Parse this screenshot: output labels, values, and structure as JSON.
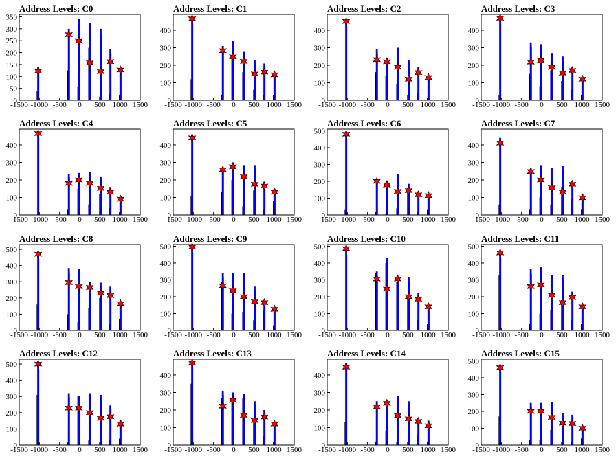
{
  "figure_title": "",
  "colors": {
    "hist": "#0000ff",
    "spike": "#000000",
    "star_fill": "#ff0000",
    "star_stroke": "#000000",
    "frame": "#000000"
  },
  "chart_data": [
    {
      "type": "bar",
      "title": "Address Levels: C0",
      "ylim": [
        0,
        360
      ],
      "yticks": [
        0,
        50,
        100,
        150,
        200,
        250,
        300,
        350
      ],
      "xticks": [
        -1500,
        -1000,
        -500,
        0,
        500,
        1000,
        1500
      ],
      "xlim": [
        -1500,
        1500
      ],
      "peaks": [
        {
          "x": -1030,
          "blue": 140,
          "black": 40,
          "star": 122
        },
        {
          "x": -270,
          "blue": 300,
          "black": 125,
          "star": 275
        },
        {
          "x": -20,
          "blue": 340,
          "black": 55,
          "star": 248
        },
        {
          "x": 250,
          "blue": 325,
          "black": 220,
          "star": 157
        },
        {
          "x": 520,
          "blue": 300,
          "black": 15,
          "star": 120
        },
        {
          "x": 760,
          "blue": 215,
          "black": 25,
          "star": 162
        },
        {
          "x": 1010,
          "blue": 140,
          "black": 20,
          "star": 127
        }
      ]
    },
    {
      "type": "bar",
      "title": "Address Levels: C1",
      "ylim": [
        0,
        490
      ],
      "yticks": [
        0,
        100,
        200,
        300,
        400
      ],
      "xticks": [
        -1500,
        -1000,
        -500,
        0,
        500,
        1000,
        1500
      ],
      "xlim": [
        -1500,
        1500
      ],
      "peaks": [
        {
          "x": -1030,
          "blue": 480,
          "black": 120,
          "star": 465
        },
        {
          "x": -270,
          "blue": 310,
          "black": 30,
          "star": 283
        },
        {
          "x": -20,
          "blue": 340,
          "black": 240,
          "star": 248
        },
        {
          "x": 250,
          "blue": 280,
          "black": 160,
          "star": 222
        },
        {
          "x": 520,
          "blue": 230,
          "black": 60,
          "star": 150
        },
        {
          "x": 760,
          "blue": 210,
          "black": 30,
          "star": 160
        },
        {
          "x": 1010,
          "blue": 155,
          "black": 30,
          "star": 145
        }
      ]
    },
    {
      "type": "bar",
      "title": "Address Levels: C2",
      "ylim": [
        0,
        490
      ],
      "yticks": [
        0,
        100,
        200,
        300,
        400
      ],
      "xticks": [
        -1500,
        -1000,
        -500,
        0,
        500,
        1000,
        1500
      ],
      "xlim": [
        -1500,
        1500
      ],
      "peaks": [
        {
          "x": -1030,
          "blue": 460,
          "black": 0,
          "star": 450
        },
        {
          "x": -270,
          "blue": 290,
          "black": 160,
          "star": 232
        },
        {
          "x": -20,
          "blue": 240,
          "black": 140,
          "star": 220
        },
        {
          "x": 250,
          "blue": 300,
          "black": 90,
          "star": 188
        },
        {
          "x": 520,
          "blue": 230,
          "black": 30,
          "star": 120
        },
        {
          "x": 760,
          "blue": 190,
          "black": 40,
          "star": 158
        },
        {
          "x": 1010,
          "blue": 140,
          "black": 15,
          "star": 130
        }
      ]
    },
    {
      "type": "bar",
      "title": "Address Levels: C3",
      "ylim": [
        0,
        490
      ],
      "yticks": [
        0,
        100,
        200,
        300,
        400
      ],
      "xticks": [
        -1500,
        -1000,
        -500,
        0,
        500,
        1000,
        1500
      ],
      "xlim": [
        -1500,
        1500
      ],
      "peaks": [
        {
          "x": -1030,
          "blue": 480,
          "black": 30,
          "star": 468
        },
        {
          "x": -270,
          "blue": 330,
          "black": 150,
          "star": 218
        },
        {
          "x": -20,
          "blue": 320,
          "black": 80,
          "star": 228
        },
        {
          "x": 250,
          "blue": 270,
          "black": 170,
          "star": 188
        },
        {
          "x": 520,
          "blue": 250,
          "black": 110,
          "star": 155
        },
        {
          "x": 760,
          "blue": 190,
          "black": 60,
          "star": 170
        },
        {
          "x": 1010,
          "blue": 130,
          "black": 30,
          "star": 120
        }
      ]
    },
    {
      "type": "bar",
      "title": "Address Levels: C4",
      "ylim": [
        0,
        490
      ],
      "yticks": [
        0,
        100,
        200,
        300,
        400
      ],
      "xticks": [
        -1500,
        -1000,
        -500,
        0,
        500,
        1000,
        1500
      ],
      "xlim": [
        -1500,
        1500
      ],
      "peaks": [
        {
          "x": -1030,
          "blue": 480,
          "black": 0,
          "star": 465
        },
        {
          "x": -270,
          "blue": 235,
          "black": 30,
          "star": 180
        },
        {
          "x": -20,
          "blue": 240,
          "black": 150,
          "star": 200
        },
        {
          "x": 250,
          "blue": 245,
          "black": 60,
          "star": 180
        },
        {
          "x": 520,
          "blue": 220,
          "black": 120,
          "star": 152
        },
        {
          "x": 760,
          "blue": 160,
          "black": 40,
          "star": 130
        },
        {
          "x": 1010,
          "blue": 110,
          "black": 15,
          "star": 90
        }
      ]
    },
    {
      "type": "bar",
      "title": "Address Levels: C5",
      "ylim": [
        0,
        490
      ],
      "yticks": [
        0,
        100,
        200,
        300,
        400
      ],
      "xticks": [
        -1500,
        -1000,
        -500,
        0,
        500,
        1000,
        1500
      ],
      "xlim": [
        -1500,
        1500
      ],
      "peaks": [
        {
          "x": -1030,
          "blue": 460,
          "black": 110,
          "star": 440
        },
        {
          "x": -270,
          "blue": 270,
          "black": 130,
          "star": 258
        },
        {
          "x": -20,
          "blue": 300,
          "black": 200,
          "star": 275
        },
        {
          "x": 250,
          "blue": 285,
          "black": 50,
          "star": 218
        },
        {
          "x": 520,
          "blue": 285,
          "black": 140,
          "star": 175
        },
        {
          "x": 760,
          "blue": 190,
          "black": 30,
          "star": 165
        },
        {
          "x": 1010,
          "blue": 150,
          "black": 80,
          "star": 130
        }
      ]
    },
    {
      "type": "bar",
      "title": "Address Levels: C6",
      "ylim": [
        0,
        510
      ],
      "yticks": [
        0,
        100,
        200,
        300,
        400,
        500
      ],
      "xticks": [
        -1500,
        -1000,
        -500,
        0,
        500,
        1000,
        1500
      ],
      "xlim": [
        -1500,
        1500
      ],
      "peaks": [
        {
          "x": -1030,
          "blue": 490,
          "black": 30,
          "star": 480
        },
        {
          "x": -270,
          "blue": 210,
          "black": 20,
          "star": 200
        },
        {
          "x": -20,
          "blue": 205,
          "black": 10,
          "star": 178
        },
        {
          "x": 250,
          "blue": 245,
          "black": 40,
          "star": 140
        },
        {
          "x": 520,
          "blue": 185,
          "black": 160,
          "star": 145
        },
        {
          "x": 760,
          "blue": 140,
          "black": 20,
          "star": 120
        },
        {
          "x": 1010,
          "blue": 115,
          "black": 30,
          "star": 115
        }
      ]
    },
    {
      "type": "bar",
      "title": "Address Levels: C7",
      "ylim": [
        0,
        490
      ],
      "yticks": [
        0,
        100,
        200,
        300,
        400
      ],
      "xticks": [
        -1500,
        -1000,
        -500,
        0,
        500,
        1000,
        1500
      ],
      "xlim": [
        -1500,
        1500
      ],
      "peaks": [
        {
          "x": -1030,
          "blue": 440,
          "black": 60,
          "star": 410
        },
        {
          "x": -270,
          "blue": 265,
          "black": 30,
          "star": 248
        },
        {
          "x": -20,
          "blue": 285,
          "black": 100,
          "star": 200
        },
        {
          "x": 250,
          "blue": 270,
          "black": 60,
          "star": 155
        },
        {
          "x": 520,
          "blue": 280,
          "black": 160,
          "star": 130
        },
        {
          "x": 760,
          "blue": 190,
          "black": 90,
          "star": 175
        },
        {
          "x": 1010,
          "blue": 120,
          "black": 30,
          "star": 98
        }
      ]
    },
    {
      "type": "bar",
      "title": "Address Levels: C8",
      "ylim": [
        0,
        530
      ],
      "yticks": [
        0,
        100,
        200,
        300,
        400,
        500
      ],
      "xticks": [
        -1500,
        -1000,
        -500,
        0,
        500,
        1000,
        1500
      ],
      "xlim": [
        -1500,
        1500
      ],
      "peaks": [
        {
          "x": -1030,
          "blue": 480,
          "black": 160,
          "star": 470
        },
        {
          "x": -270,
          "blue": 385,
          "black": 100,
          "star": 295
        },
        {
          "x": -20,
          "blue": 380,
          "black": 50,
          "star": 270
        },
        {
          "x": 250,
          "blue": 300,
          "black": 140,
          "star": 265
        },
        {
          "x": 520,
          "blue": 295,
          "black": 200,
          "star": 230
        },
        {
          "x": 760,
          "blue": 270,
          "black": 40,
          "star": 215
        },
        {
          "x": 1010,
          "blue": 180,
          "black": 70,
          "star": 165
        }
      ]
    },
    {
      "type": "bar",
      "title": "Address Levels: C9",
      "ylim": [
        0,
        510
      ],
      "yticks": [
        0,
        100,
        200,
        300,
        400,
        500
      ],
      "xticks": [
        -1500,
        -1000,
        -500,
        0,
        500,
        1000,
        1500
      ],
      "xlim": [
        -1500,
        1500
      ],
      "peaks": [
        {
          "x": -1030,
          "blue": 505,
          "black": 0,
          "star": 495
        },
        {
          "x": -270,
          "blue": 340,
          "black": 290,
          "star": 265
        },
        {
          "x": -20,
          "blue": 340,
          "black": 100,
          "star": 235
        },
        {
          "x": 250,
          "blue": 340,
          "black": 110,
          "star": 200
        },
        {
          "x": 520,
          "blue": 260,
          "black": 60,
          "star": 170
        },
        {
          "x": 760,
          "blue": 175,
          "black": 120,
          "star": 165
        },
        {
          "x": 1010,
          "blue": 135,
          "black": 30,
          "star": 125
        }
      ]
    },
    {
      "type": "bar",
      "title": "Address Levels: C10",
      "ylim": [
        0,
        510
      ],
      "yticks": [
        0,
        100,
        200,
        300,
        400,
        500
      ],
      "xticks": [
        -1500,
        -1000,
        -500,
        0,
        500,
        1000,
        1500
      ],
      "xlim": [
        -1500,
        1500
      ],
      "peaks": [
        {
          "x": -1030,
          "blue": 490,
          "black": 0,
          "star": 485
        },
        {
          "x": -270,
          "blue": 350,
          "black": 340,
          "star": 305
        },
        {
          "x": -20,
          "blue": 430,
          "black": 400,
          "star": 245
        },
        {
          "x": 250,
          "blue": 310,
          "black": 290,
          "star": 305
        },
        {
          "x": 520,
          "blue": 315,
          "black": 200,
          "star": 200
        },
        {
          "x": 760,
          "blue": 220,
          "black": 60,
          "star": 185
        },
        {
          "x": 1010,
          "blue": 160,
          "black": 40,
          "star": 140
        }
      ]
    },
    {
      "type": "bar",
      "title": "Address Levels: C11",
      "ylim": [
        0,
        510
      ],
      "yticks": [
        0,
        100,
        200,
        300,
        400,
        500
      ],
      "xticks": [
        -1500,
        -1000,
        -500,
        0,
        500,
        1000,
        1500
      ],
      "xlim": [
        -1500,
        1500
      ],
      "peaks": [
        {
          "x": -1030,
          "blue": 470,
          "black": 330,
          "star": 460
        },
        {
          "x": -270,
          "blue": 365,
          "black": 40,
          "star": 260
        },
        {
          "x": -20,
          "blue": 375,
          "black": 100,
          "star": 270
        },
        {
          "x": 250,
          "blue": 330,
          "black": 120,
          "star": 208
        },
        {
          "x": 520,
          "blue": 330,
          "black": 180,
          "star": 165
        },
        {
          "x": 760,
          "blue": 230,
          "black": 60,
          "star": 195
        },
        {
          "x": 1010,
          "blue": 160,
          "black": 40,
          "star": 140
        }
      ]
    },
    {
      "type": "bar",
      "title": "Address Levels: C12",
      "ylim": [
        0,
        530
      ],
      "yticks": [
        0,
        100,
        200,
        300,
        400,
        500
      ],
      "xticks": [
        -1500,
        -1000,
        -500,
        0,
        500,
        1000,
        1500
      ],
      "xlim": [
        -1500,
        1500
      ],
      "peaks": [
        {
          "x": -1030,
          "blue": 505,
          "black": 310,
          "star": 500
        },
        {
          "x": -270,
          "blue": 320,
          "black": 20,
          "star": 228
        },
        {
          "x": -20,
          "blue": 305,
          "black": 300,
          "star": 228
        },
        {
          "x": 250,
          "blue": 320,
          "black": 30,
          "star": 200
        },
        {
          "x": 520,
          "blue": 310,
          "black": 20,
          "star": 165
        },
        {
          "x": 760,
          "blue": 245,
          "black": 30,
          "star": 175
        },
        {
          "x": 1010,
          "blue": 155,
          "black": 40,
          "star": 130
        }
      ]
    },
    {
      "type": "bar",
      "title": "Address Levels: C13",
      "ylim": [
        0,
        490
      ],
      "yticks": [
        0,
        100,
        200,
        300,
        400
      ],
      "xticks": [
        -1500,
        -1000,
        -500,
        0,
        500,
        1000,
        1500
      ],
      "xlim": [
        -1500,
        1500
      ],
      "peaks": [
        {
          "x": -1030,
          "blue": 480,
          "black": 350,
          "star": 468
        },
        {
          "x": -270,
          "blue": 310,
          "black": 270,
          "star": 222
        },
        {
          "x": -20,
          "blue": 300,
          "black": 250,
          "star": 255
        },
        {
          "x": 250,
          "blue": 290,
          "black": 270,
          "star": 170
        },
        {
          "x": 520,
          "blue": 250,
          "black": 150,
          "star": 140
        },
        {
          "x": 760,
          "blue": 200,
          "black": 50,
          "star": 160
        },
        {
          "x": 1010,
          "blue": 130,
          "black": 20,
          "star": 120
        }
      ]
    },
    {
      "type": "bar",
      "title": "Address Levels: C14",
      "ylim": [
        0,
        490
      ],
      "yticks": [
        0,
        100,
        200,
        300,
        400
      ],
      "xticks": [
        -1500,
        -1000,
        -500,
        0,
        500,
        1000,
        1500
      ],
      "xlim": [
        -1500,
        1500
      ],
      "peaks": [
        {
          "x": -1030,
          "blue": 470,
          "black": 130,
          "star": 445
        },
        {
          "x": -270,
          "blue": 250,
          "black": 20,
          "star": 218
        },
        {
          "x": -20,
          "blue": 240,
          "black": 80,
          "star": 238
        },
        {
          "x": 250,
          "blue": 280,
          "black": 20,
          "star": 168
        },
        {
          "x": 520,
          "blue": 250,
          "black": 20,
          "star": 150
        },
        {
          "x": 760,
          "blue": 155,
          "black": 60,
          "star": 135
        },
        {
          "x": 1010,
          "blue": 140,
          "black": 20,
          "star": 110
        }
      ]
    },
    {
      "type": "bar",
      "title": "Address Levels: C15",
      "ylim": [
        0,
        510
      ],
      "yticks": [
        0,
        100,
        200,
        300,
        400,
        500
      ],
      "xticks": [
        -1500,
        -1000,
        -500,
        0,
        500,
        1000,
        1500
      ],
      "xlim": [
        -1500,
        1500
      ],
      "peaks": [
        {
          "x": -1030,
          "blue": 470,
          "black": 170,
          "star": 460
        },
        {
          "x": -270,
          "blue": 250,
          "black": 30,
          "star": 200
        },
        {
          "x": -20,
          "blue": 250,
          "black": 30,
          "star": 200
        },
        {
          "x": 250,
          "blue": 255,
          "black": 90,
          "star": 165
        },
        {
          "x": 520,
          "blue": 190,
          "black": 20,
          "star": 130
        },
        {
          "x": 760,
          "blue": 180,
          "black": 20,
          "star": 128
        },
        {
          "x": 1010,
          "blue": 110,
          "black": 40,
          "star": 100
        }
      ]
    }
  ]
}
